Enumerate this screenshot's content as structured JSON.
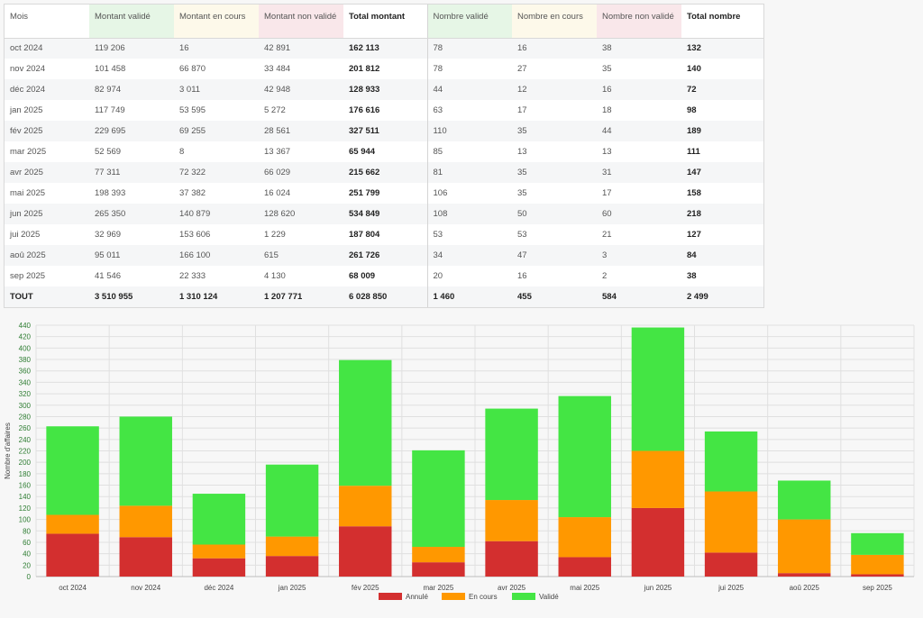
{
  "table": {
    "headers": [
      {
        "label": "Mois",
        "style": "white",
        "bold": false
      },
      {
        "label": "Montant validé",
        "style": "green",
        "bold": false
      },
      {
        "label": "Montant en cours",
        "style": "yellow",
        "bold": false
      },
      {
        "label": "Montant non validé",
        "style": "pink",
        "bold": false
      },
      {
        "label": "Total montant",
        "style": "white",
        "bold": true
      },
      {
        "label": "Nombre validé",
        "style": "green",
        "bold": false
      },
      {
        "label": "Nombre en cours",
        "style": "yellow",
        "bold": false
      },
      {
        "label": "Nombre non validé",
        "style": "pink",
        "bold": false
      },
      {
        "label": "Total nombre",
        "style": "white",
        "bold": true
      }
    ],
    "rows": [
      [
        "oct 2024",
        "119 206",
        "16",
        "42 891",
        "162 113",
        "78",
        "16",
        "38",
        "132"
      ],
      [
        "nov 2024",
        "101 458",
        "66 870",
        "33 484",
        "201 812",
        "78",
        "27",
        "35",
        "140"
      ],
      [
        "déc 2024",
        "82 974",
        "3 011",
        "42 948",
        "128 933",
        "44",
        "12",
        "16",
        "72"
      ],
      [
        "jan 2025",
        "117 749",
        "53 595",
        "5 272",
        "176 616",
        "63",
        "17",
        "18",
        "98"
      ],
      [
        "fév 2025",
        "229 695",
        "69 255",
        "28 561",
        "327 511",
        "110",
        "35",
        "44",
        "189"
      ],
      [
        "mar 2025",
        "52 569",
        "8",
        "13 367",
        "65 944",
        "85",
        "13",
        "13",
        "111"
      ],
      [
        "avr 2025",
        "77 311",
        "72 322",
        "66 029",
        "215 662",
        "81",
        "35",
        "31",
        "147"
      ],
      [
        "mai 2025",
        "198 393",
        "37 382",
        "16 024",
        "251 799",
        "106",
        "35",
        "17",
        "158"
      ],
      [
        "jun 2025",
        "265 350",
        "140 879",
        "128 620",
        "534 849",
        "108",
        "50",
        "60",
        "218"
      ],
      [
        "jui 2025",
        "32 969",
        "153 606",
        "1 229",
        "187 804",
        "53",
        "53",
        "21",
        "127"
      ],
      [
        "aoû 2025",
        "95 011",
        "166 100",
        "615",
        "261 726",
        "34",
        "47",
        "3",
        "84"
      ],
      [
        "sep 2025",
        "41 546",
        "22 333",
        "4 130",
        "68 009",
        "20",
        "16",
        "2",
        "38"
      ]
    ],
    "total": [
      "TOUT",
      "3 510 955",
      "1 310 124",
      "1 207 771",
      "6 028 850",
      "1 460",
      "455",
      "584",
      "2 499"
    ]
  },
  "chart_data": {
    "type": "bar",
    "stacked": true,
    "categories": [
      "oct 2024",
      "nov 2024",
      "déc 2024",
      "jan 2025",
      "fév 2025",
      "mar 2025",
      "avr 2025",
      "mai 2025",
      "jun 2025",
      "jui 2025",
      "aoû 2025",
      "sep 2025"
    ],
    "series": [
      {
        "name": "Annulé",
        "color": "#d32f2f",
        "values": [
          75,
          69,
          32,
          36,
          88,
          25,
          62,
          34,
          120,
          42,
          6,
          4
        ]
      },
      {
        "name": "En cours",
        "color": "#ff9800",
        "values": [
          33,
          55,
          24,
          34,
          71,
          27,
          72,
          70,
          100,
          107,
          94,
          34
        ]
      },
      {
        "name": "Validé",
        "color": "#44e544",
        "values": [
          155,
          156,
          89,
          126,
          220,
          169,
          160,
          212,
          216,
          105,
          68,
          38
        ]
      }
    ],
    "ylabel": "Nombre d'affaires",
    "ylim": [
      0,
      440
    ],
    "ytick_step": 20,
    "grid": true,
    "legend": "bottom"
  }
}
